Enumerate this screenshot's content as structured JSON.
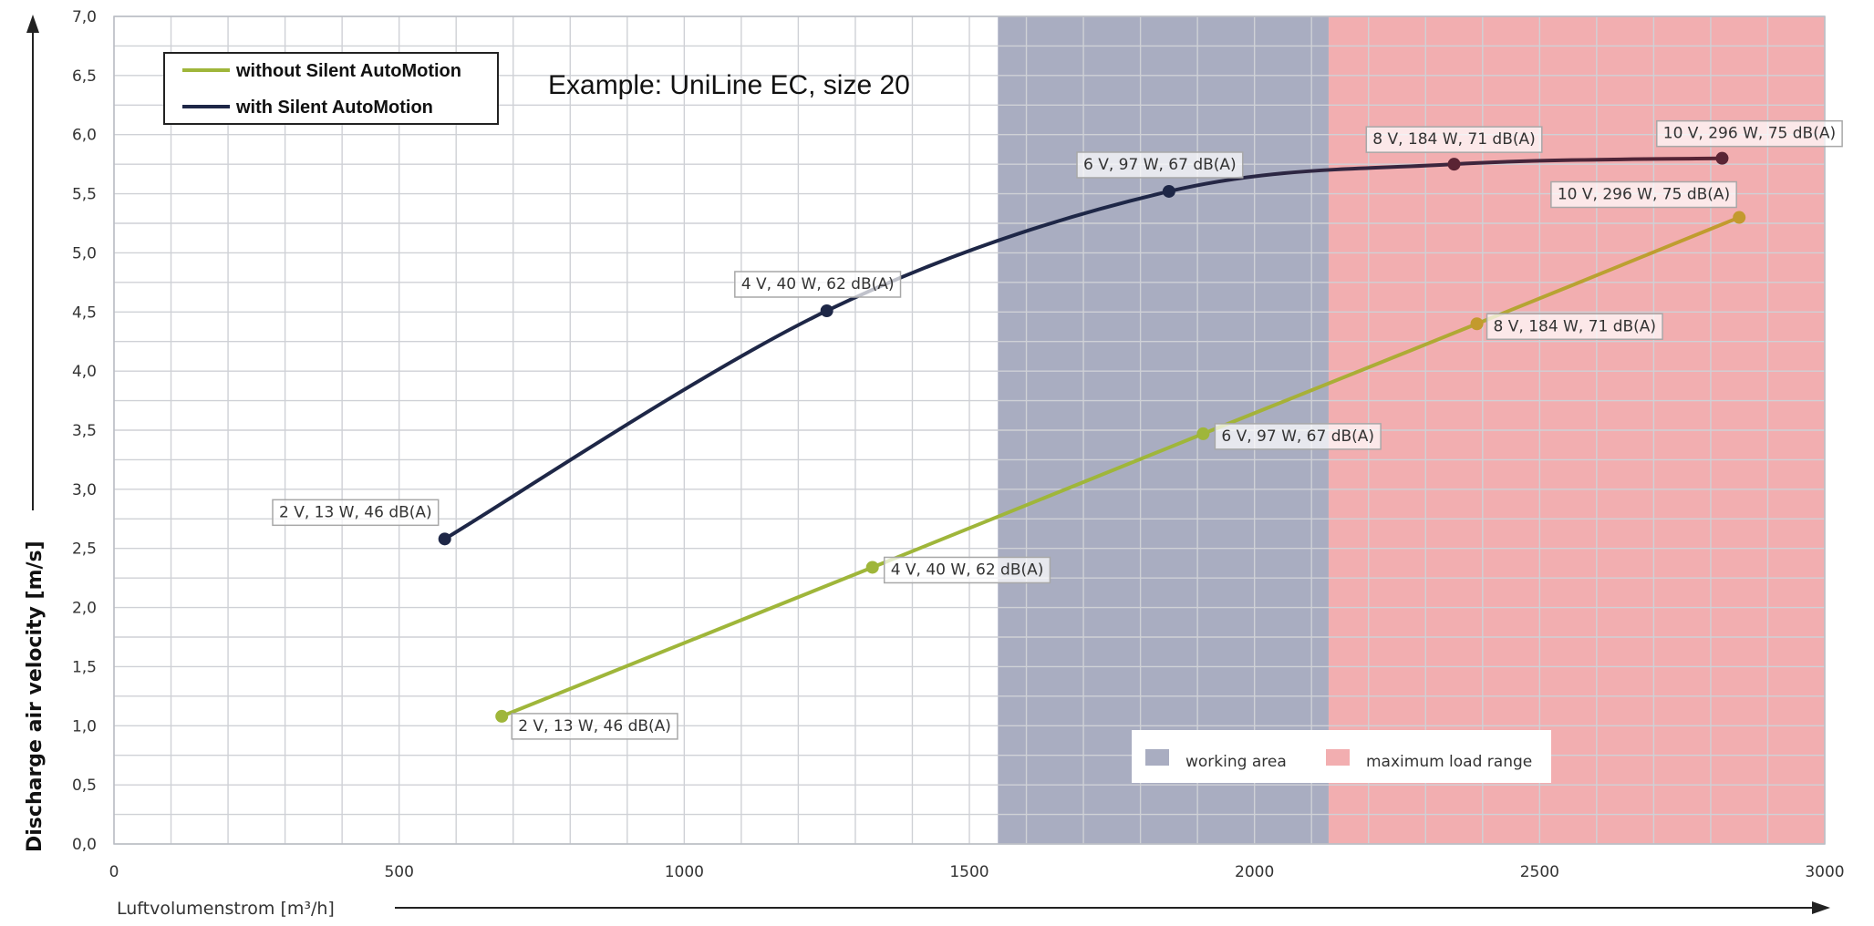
{
  "chart_data": {
    "type": "line",
    "title": "Example: UniLine EC, size 20",
    "xlabel": "Luftvolumenstrom [m³/h]",
    "ylabel": "Discharge air velocity  [m/s]",
    "xlim": [
      0,
      3000
    ],
    "ylim": [
      0,
      7
    ],
    "x_ticks": [
      "0",
      "500",
      "1000",
      "1500",
      "2000",
      "2500",
      "3000"
    ],
    "y_ticks": [
      "0,0",
      "0,5",
      "1,0",
      "1,5",
      "2,0",
      "2,5",
      "3,0",
      "3,5",
      "4,0",
      "4,5",
      "5,0",
      "5,5",
      "6,0",
      "6,5",
      "7,0"
    ],
    "grid": true,
    "legend_position": "top-left",
    "series": [
      {
        "name": "without Silent AutoMotion",
        "color": "#9fb63a",
        "color_end": "#c39a2e",
        "points": [
          {
            "x": 680,
            "y": 1.08,
            "label": "2 V, 13 W, 46 dB(A)"
          },
          {
            "x": 1330,
            "y": 2.34,
            "label": "4 V, 40 W, 62 dB(A)"
          },
          {
            "x": 1910,
            "y": 3.47,
            "label": "6 V, 97 W, 67 dB(A)"
          },
          {
            "x": 2390,
            "y": 4.4,
            "label": "8 V, 184 W, 71 dB(A)"
          },
          {
            "x": 2850,
            "y": 5.3,
            "label": "10 V, 296 W, 75 dB(A)"
          }
        ]
      },
      {
        "name": "with Silent AutoMotion",
        "color": "#1e2747",
        "color_end": "#5a2434",
        "points": [
          {
            "x": 580,
            "y": 2.58,
            "label": "2 V, 13 W, 46 dB(A)"
          },
          {
            "x": 1250,
            "y": 4.51,
            "label": "4 V, 40 W, 62 dB(A)"
          },
          {
            "x": 1850,
            "y": 5.52,
            "label": "6 V, 97 W, 67 dB(A)"
          },
          {
            "x": 2350,
            "y": 5.75,
            "label": "8 V, 184 W, 71 dB(A)"
          },
          {
            "x": 2820,
            "y": 5.8,
            "label": "10 V, 296 W, 75 dB(A)"
          }
        ]
      }
    ],
    "zones": [
      {
        "name": "working area",
        "x_from": 1550,
        "x_to": 2130,
        "color": "#a9adc1"
      },
      {
        "name": "maximum load range",
        "x_from": 2130,
        "x_to": 3000,
        "color": "#f2aeb0"
      }
    ]
  }
}
